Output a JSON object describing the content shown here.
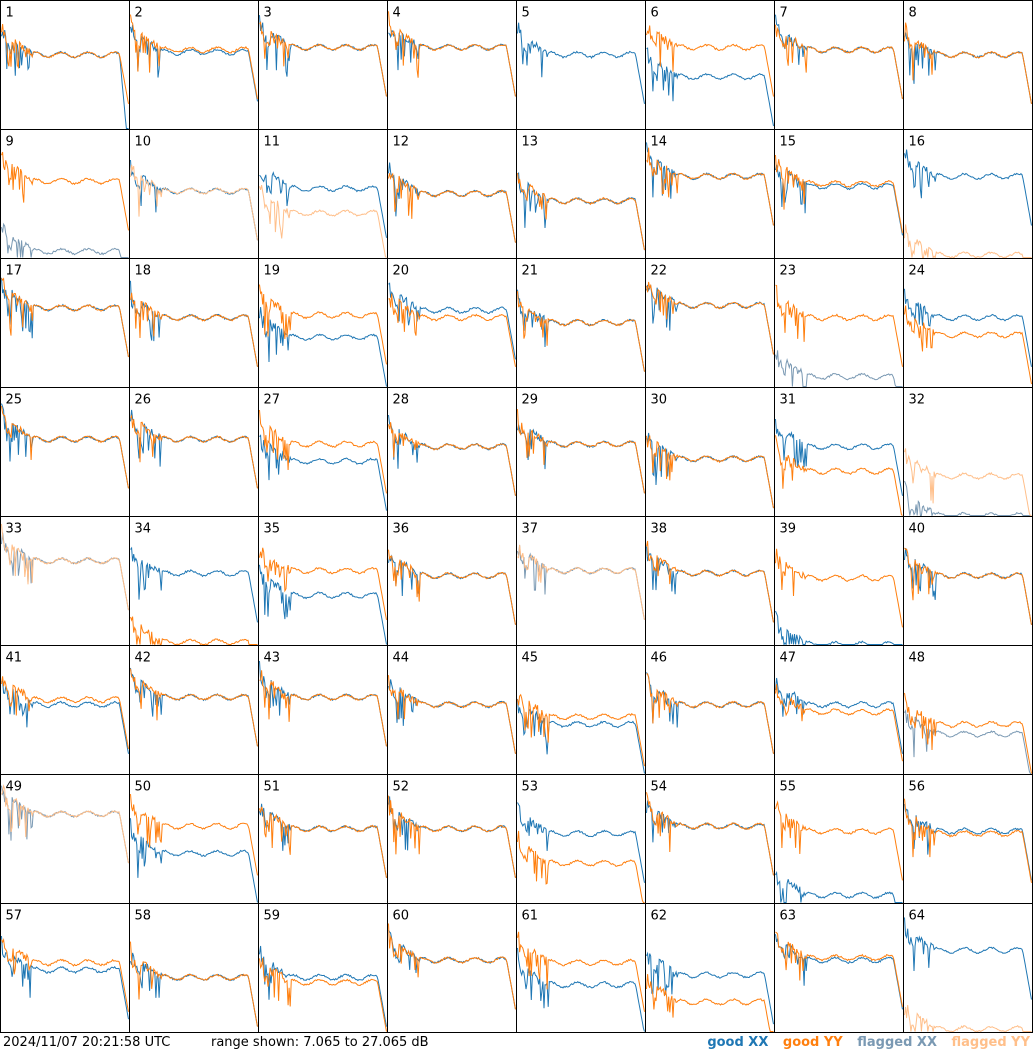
{
  "footer": {
    "timestamp": "2024/11/07 20:21:58 UTC",
    "range": "range shown: 7.065 to 27.065 dB"
  },
  "legend": [
    {
      "label": "good XX",
      "color": "#1f77b4"
    },
    {
      "label": "good YY",
      "color": "#ff7f0e"
    },
    {
      "label": "flagged XX",
      "color": "#7a99b3"
    },
    {
      "label": "flagged YY",
      "color": "#ffbf8a"
    }
  ],
  "chart_data": {
    "type": "line",
    "grid": {
      "rows": 8,
      "cols": 8
    },
    "ylim": [
      7.065,
      27.065
    ],
    "yunit": "dB",
    "panels": [
      {
        "label": "1",
        "xx": "good",
        "yy": "good",
        "xx_level": 0.6,
        "yy_level": 0.6,
        "xx_drop": true,
        "yy_drop": false
      },
      {
        "label": "2",
        "xx": "good",
        "yy": "good",
        "xx_level": 0.62,
        "yy_level": 0.64
      },
      {
        "label": "3",
        "xx": "good",
        "yy": "good",
        "xx_level": 0.66,
        "yy_level": 0.66
      },
      {
        "label": "4",
        "xx": "good",
        "yy": "good",
        "xx_level": 0.66,
        "yy_level": 0.66
      },
      {
        "label": "5",
        "xx": "good",
        "yy": "none",
        "xx_level": 0.6,
        "yy_level": 0
      },
      {
        "label": "6",
        "xx": "good",
        "yy": "good",
        "xx_level": 0.42,
        "yy_level": 0.66
      },
      {
        "label": "7",
        "xx": "good",
        "yy": "good",
        "xx_level": 0.64,
        "yy_level": 0.64
      },
      {
        "label": "8",
        "xx": "good",
        "yy": "good",
        "xx_level": 0.6,
        "yy_level": 0.6
      },
      {
        "label": "9",
        "xx": "flagged",
        "yy": "good",
        "xx_level": 0.05,
        "yy_level": 0.62
      },
      {
        "label": "10",
        "xx": "good",
        "yy": "flagged",
        "xx_level": 0.54,
        "yy_level": 0.54
      },
      {
        "label": "11",
        "xx": "good",
        "yy": "flagged",
        "xx_level": 0.56,
        "yy_level": 0.36
      },
      {
        "label": "12",
        "xx": "good",
        "yy": "good",
        "xx_level": 0.52,
        "yy_level": 0.52
      },
      {
        "label": "13",
        "xx": "good",
        "yy": "good",
        "xx_level": 0.46,
        "yy_level": 0.46
      },
      {
        "label": "14",
        "xx": "good",
        "yy": "good",
        "xx_level": 0.66,
        "yy_level": 0.66
      },
      {
        "label": "15",
        "xx": "good",
        "yy": "good",
        "xx_level": 0.58,
        "yy_level": 0.6
      },
      {
        "label": "16",
        "xx": "good",
        "yy": "flagged",
        "xx_level": 0.66,
        "yy_level": 0.02
      },
      {
        "label": "17",
        "xx": "good",
        "yy": "good",
        "xx_level": 0.64,
        "yy_level": 0.64
      },
      {
        "label": "18",
        "xx": "good",
        "yy": "good",
        "xx_level": 0.56,
        "yy_level": 0.56
      },
      {
        "label": "19",
        "xx": "good",
        "yy": "good",
        "xx_level": 0.4,
        "yy_level": 0.58
      },
      {
        "label": "20",
        "xx": "good",
        "yy": "good",
        "xx_level": 0.62,
        "yy_level": 0.56
      },
      {
        "label": "21",
        "xx": "good",
        "yy": "good",
        "xx_level": 0.52,
        "yy_level": 0.52
      },
      {
        "label": "22",
        "xx": "good",
        "yy": "good",
        "xx_level": 0.66,
        "yy_level": 0.66
      },
      {
        "label": "23",
        "xx": "flagged",
        "yy": "good",
        "xx_level": 0.08,
        "yy_level": 0.56
      },
      {
        "label": "24",
        "xx": "good",
        "yy": "good",
        "xx_level": 0.56,
        "yy_level": 0.42
      },
      {
        "label": "25",
        "xx": "good",
        "yy": "good",
        "xx_level": 0.62,
        "yy_level": 0.62
      },
      {
        "label": "26",
        "xx": "good",
        "yy": "good",
        "xx_level": 0.62,
        "yy_level": 0.62
      },
      {
        "label": "27",
        "xx": "good",
        "yy": "good",
        "xx_level": 0.44,
        "yy_level": 0.58
      },
      {
        "label": "28",
        "xx": "good",
        "yy": "good",
        "xx_level": 0.56,
        "yy_level": 0.56
      },
      {
        "label": "29",
        "xx": "good",
        "yy": "good",
        "xx_level": 0.58,
        "yy_level": 0.58
      },
      {
        "label": "30",
        "xx": "good",
        "yy": "good",
        "xx_level": 0.46,
        "yy_level": 0.46
      },
      {
        "label": "31",
        "xx": "good",
        "yy": "good",
        "xx_level": 0.56,
        "yy_level": 0.36
      },
      {
        "label": "32",
        "xx": "flagged",
        "yy": "flagged",
        "xx_level": 0.0,
        "yy_level": 0.32
      },
      {
        "label": "33",
        "xx": "flagged",
        "yy": "flagged",
        "xx_level": 0.68,
        "yy_level": 0.68
      },
      {
        "label": "34",
        "xx": "good",
        "yy": "good",
        "xx_level": 0.58,
        "yy_level": 0.02
      },
      {
        "label": "35",
        "xx": "good",
        "yy": "good",
        "xx_level": 0.4,
        "yy_level": 0.6
      },
      {
        "label": "36",
        "xx": "good",
        "yy": "good",
        "xx_level": 0.56,
        "yy_level": 0.56
      },
      {
        "label": "37",
        "xx": "flagged",
        "yy": "flagged",
        "xx_level": 0.6,
        "yy_level": 0.6
      },
      {
        "label": "38",
        "xx": "good",
        "yy": "good",
        "xx_level": 0.58,
        "yy_level": 0.58
      },
      {
        "label": "39",
        "xx": "good",
        "yy": "good",
        "xx_level": 0.0,
        "yy_level": 0.54
      },
      {
        "label": "40",
        "xx": "good",
        "yy": "good",
        "xx_level": 0.56,
        "yy_level": 0.56
      },
      {
        "label": "41",
        "xx": "good",
        "yy": "good",
        "xx_level": 0.56,
        "yy_level": 0.6
      },
      {
        "label": "42",
        "xx": "good",
        "yy": "good",
        "xx_level": 0.62,
        "yy_level": 0.62
      },
      {
        "label": "43",
        "xx": "good",
        "yy": "good",
        "xx_level": 0.62,
        "yy_level": 0.62
      },
      {
        "label": "44",
        "xx": "good",
        "yy": "good",
        "xx_level": 0.56,
        "yy_level": 0.56
      },
      {
        "label": "45",
        "xx": "good",
        "yy": "good",
        "xx_level": 0.4,
        "yy_level": 0.46
      },
      {
        "label": "46",
        "xx": "good",
        "yy": "good",
        "xx_level": 0.56,
        "yy_level": 0.56
      },
      {
        "label": "47",
        "xx": "good",
        "yy": "good",
        "xx_level": 0.56,
        "yy_level": 0.5
      },
      {
        "label": "48",
        "xx": "flagged",
        "yy": "good",
        "xx_level": 0.32,
        "yy_level": 0.4
      },
      {
        "label": "49",
        "xx": "flagged",
        "yy": "flagged",
        "xx_level": 0.72,
        "yy_level": 0.72
      },
      {
        "label": "50",
        "xx": "good",
        "yy": "good",
        "xx_level": 0.4,
        "yy_level": 0.62
      },
      {
        "label": "51",
        "xx": "good",
        "yy": "good",
        "xx_level": 0.6,
        "yy_level": 0.6
      },
      {
        "label": "52",
        "xx": "good",
        "yy": "good",
        "xx_level": 0.6,
        "yy_level": 0.6
      },
      {
        "label": "53",
        "xx": "good",
        "yy": "good",
        "xx_level": 0.56,
        "yy_level": 0.32
      },
      {
        "label": "54",
        "xx": "good",
        "yy": "good",
        "xx_level": 0.62,
        "yy_level": 0.62
      },
      {
        "label": "55",
        "xx": "good",
        "yy": "good",
        "xx_level": 0.06,
        "yy_level": 0.58
      },
      {
        "label": "56",
        "xx": "good",
        "yy": "good",
        "xx_level": 0.58,
        "yy_level": 0.56
      },
      {
        "label": "57",
        "xx": "good",
        "yy": "good",
        "xx_level": 0.5,
        "yy_level": 0.56
      },
      {
        "label": "58",
        "xx": "good",
        "yy": "good",
        "xx_level": 0.44,
        "yy_level": 0.44
      },
      {
        "label": "59",
        "xx": "good",
        "yy": "good",
        "xx_level": 0.44,
        "yy_level": 0.4
      },
      {
        "label": "60",
        "xx": "good",
        "yy": "good",
        "xx_level": 0.58,
        "yy_level": 0.58
      },
      {
        "label": "61",
        "xx": "good",
        "yy": "good",
        "xx_level": 0.38,
        "yy_level": 0.56
      },
      {
        "label": "62",
        "xx": "good",
        "yy": "good",
        "xx_level": 0.46,
        "yy_level": 0.24
      },
      {
        "label": "63",
        "xx": "good",
        "yy": "good",
        "xx_level": 0.58,
        "yy_level": 0.6
      },
      {
        "label": "64",
        "xx": "good",
        "yy": "flagged",
        "xx_level": 0.66,
        "yy_level": 0.02
      }
    ]
  }
}
